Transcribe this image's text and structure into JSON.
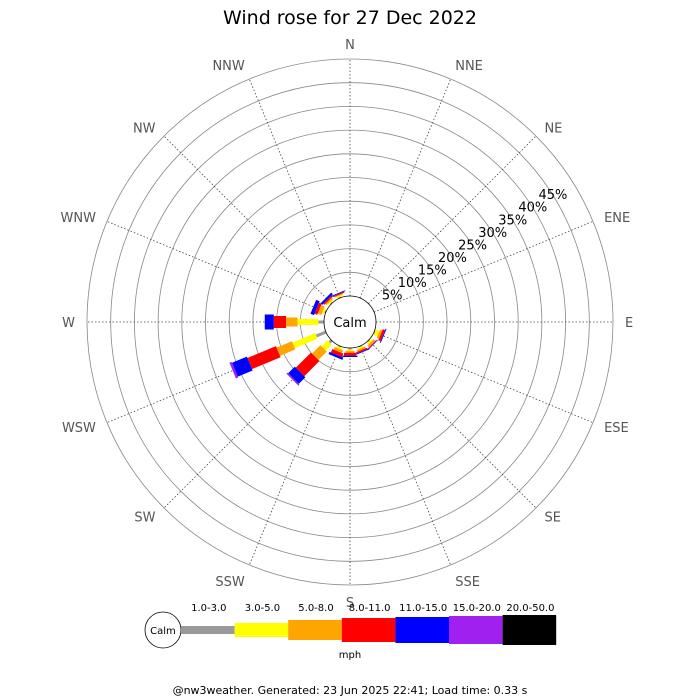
{
  "chart_data": {
    "type": "wind_rose",
    "title": "Wind rose for 27 Dec 2022",
    "directions": [
      "N",
      "NNE",
      "NE",
      "ENE",
      "E",
      "ESE",
      "SE",
      "SSE",
      "S",
      "SSW",
      "SW",
      "WSW",
      "W",
      "WNW",
      "NW",
      "NNW"
    ],
    "ring_labels": [
      "5%",
      "10%",
      "15%",
      "20%",
      "25%",
      "30%",
      "35%",
      "40%",
      "45%"
    ],
    "calm_label": "Calm",
    "speed_bins": [
      {
        "label": "1.0-3.0",
        "color": "#999999"
      },
      {
        "label": "3.0-5.0",
        "color": "#ffff00"
      },
      {
        "label": "5.0-8.0",
        "color": "#ffa500"
      },
      {
        "label": "8.0-11.0",
        "color": "#ff0000"
      },
      {
        "label": "11.0-15.0",
        "color": "#0000ff"
      },
      {
        "label": "15.0-20.0",
        "color": "#a020f0"
      },
      {
        "label": "20.0-50.0",
        "color": "#000000"
      }
    ],
    "units": "mph",
    "series": [
      {
        "direction": "N",
        "values": [
          0,
          0,
          0,
          0,
          0,
          0,
          0
        ]
      },
      {
        "direction": "NNE",
        "values": [
          0,
          0,
          0,
          0,
          0,
          0,
          0
        ]
      },
      {
        "direction": "NE",
        "values": [
          0,
          0,
          0,
          0,
          0,
          0,
          0
        ]
      },
      {
        "direction": "ENE",
        "values": [
          0,
          0,
          0,
          0,
          0,
          0,
          0
        ]
      },
      {
        "direction": "E",
        "values": [
          0,
          0,
          0,
          0,
          0,
          0,
          0
        ]
      },
      {
        "direction": "ESE",
        "values": [
          0.2,
          0.8,
          0.5,
          0.5,
          0.2,
          0,
          0
        ]
      },
      {
        "direction": "SE",
        "values": [
          0.2,
          0.4,
          0.5,
          0.2,
          0.1,
          0,
          0
        ]
      },
      {
        "direction": "SSE",
        "values": [
          0.2,
          0.3,
          0.4,
          0.3,
          0.2,
          0,
          0
        ]
      },
      {
        "direction": "S",
        "values": [
          0.3,
          0.3,
          0.4,
          0.6,
          0.3,
          0,
          0
        ]
      },
      {
        "direction": "SSW",
        "values": [
          0.2,
          0.4,
          0.6,
          0.8,
          0.5,
          0,
          0
        ]
      },
      {
        "direction": "SW",
        "values": [
          0.6,
          1.8,
          2.5,
          4.5,
          2.0,
          0.3,
          0
        ]
      },
      {
        "direction": "WSW",
        "values": [
          2.2,
          5.2,
          3.5,
          6.5,
          3.4,
          0.5,
          0
        ]
      },
      {
        "direction": "W",
        "values": [
          1.2,
          4.4,
          2.4,
          2.6,
          1.9,
          0,
          0
        ]
      },
      {
        "direction": "WNW",
        "values": [
          0.3,
          0.4,
          0.8,
          0.6,
          0.8,
          0,
          0
        ]
      },
      {
        "direction": "NW",
        "values": [
          0.2,
          0.3,
          0.4,
          0.3,
          0.5,
          0,
          0
        ]
      },
      {
        "direction": "NNW",
        "values": [
          0.2,
          0.3,
          0.2,
          0.2,
          0.2,
          0,
          0
        ]
      }
    ],
    "rmax_percent": 50
  },
  "footer": "@nw3weather. Generated: 23 Jun 2025 22:41; Load time: 0.33 s"
}
